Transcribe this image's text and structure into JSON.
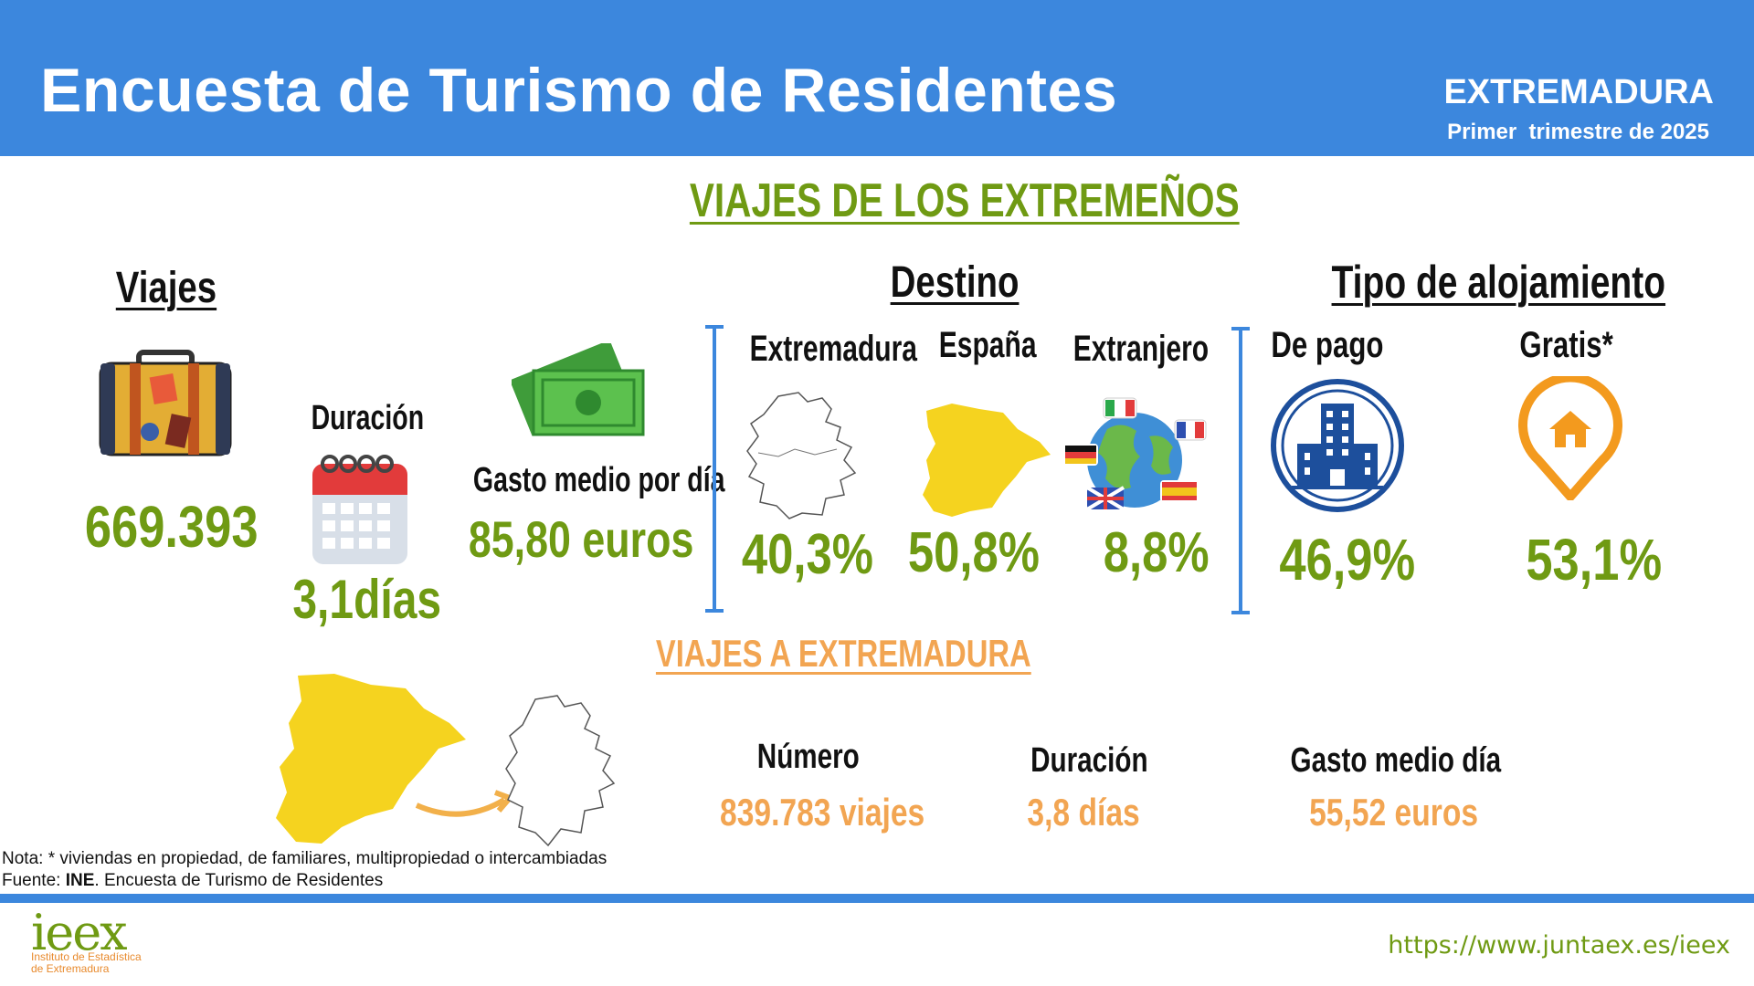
{
  "header": {
    "title": "Encuesta de Turismo de Residentes",
    "region": "EXTREMADURA",
    "period": "Primer  trimestre de 2025"
  },
  "section_residents": {
    "heading": "VIAJES DE LOS EXTREMEÑOS",
    "viajes": {
      "heading": "Viajes",
      "value": "669.393",
      "icon": "suitcase-icon"
    },
    "duracion": {
      "label": "Duración",
      "value": "3,1días",
      "icon": "calendar-icon"
    },
    "gasto": {
      "label": "Gasto medio por día",
      "value": "85,80 euros",
      "icon": "money-icon"
    },
    "destino": {
      "heading": "Destino",
      "items": [
        {
          "label": "Extremadura",
          "value": "40,3%",
          "icon": "extremadura-map-icon"
        },
        {
          "label": "España",
          "value": "50,8%",
          "icon": "spain-map-icon"
        },
        {
          "label": "Extranjero",
          "value": "8,8%",
          "icon": "globe-flags-icon"
        }
      ]
    },
    "alojamiento": {
      "heading": "Tipo de alojamiento",
      "items": [
        {
          "label": "De pago",
          "value": "46,9%",
          "icon": "hotel-icon"
        },
        {
          "label": "Gratis*",
          "value": "53,1%",
          "icon": "home-pin-icon"
        }
      ]
    }
  },
  "section_inbound": {
    "heading": "VIAJES A EXTREMADURA",
    "numero": {
      "label": "Número",
      "value": "839.783 viajes"
    },
    "duracion": {
      "label": "Duración",
      "value": "3,8 días"
    },
    "gasto": {
      "label": "Gasto medio día",
      "value": "55,52 euros"
    }
  },
  "notes": {
    "note": "Nota:  * viviendas en propiedad, de familiares, multipropiedad o intercambiadas",
    "source_prefix": "Fuente: ",
    "source_org": "INE",
    "source_suffix": ". Encuesta de Turismo de Residentes"
  },
  "footer": {
    "url": "https://www.juntaex.es/ieex",
    "logo_text": "ieex",
    "logo_sub_1": "Instituto de Estadística",
    "logo_sub_2": "de Extremadura"
  },
  "colors": {
    "header_blue": "#3c87dd",
    "green": "#6f9a13",
    "orange": "#f2a552",
    "yellow": "#f5cd1c",
    "dark_blue": "#1d4f9c"
  }
}
